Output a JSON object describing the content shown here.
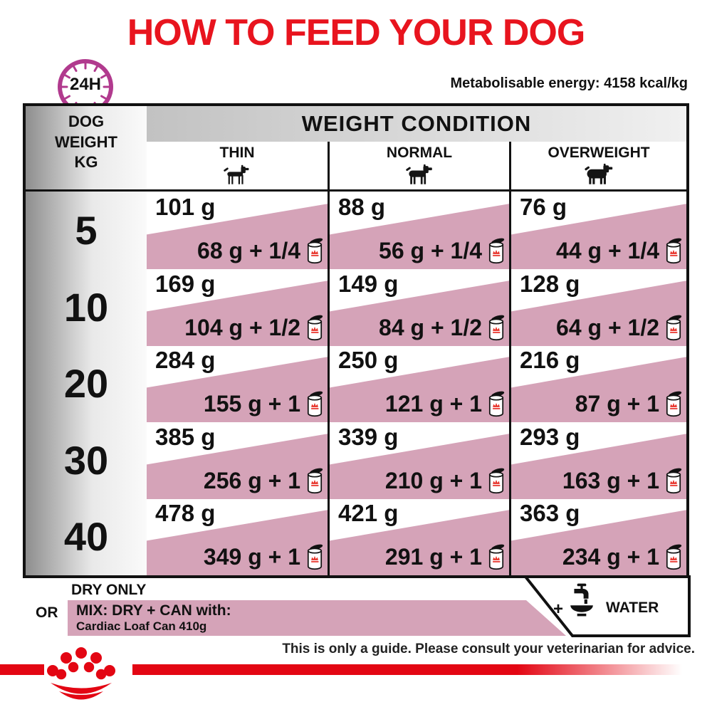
{
  "title": "HOW TO FEED YOUR DOG",
  "clock": {
    "label": "24H"
  },
  "energy_note": "Metabolisable energy: 4158 kcal/kg",
  "table": {
    "weight_header": "DOG WEIGHT KG",
    "condition_header": "WEIGHT CONDITION",
    "columns": [
      {
        "label": "THIN",
        "icon": "dog-thin-icon"
      },
      {
        "label": "NORMAL",
        "icon": "dog-normal-icon"
      },
      {
        "label": "OVERWEIGHT",
        "icon": "dog-overweight-icon"
      }
    ],
    "rows": [
      {
        "weight_kg": "5",
        "cells": [
          {
            "dry": "101 g",
            "mix": "68 g + 1/4"
          },
          {
            "dry": "88 g",
            "mix": "56 g + 1/4"
          },
          {
            "dry": "76 g",
            "mix": "44 g + 1/4"
          }
        ]
      },
      {
        "weight_kg": "10",
        "cells": [
          {
            "dry": "169 g",
            "mix": "104 g + 1/2"
          },
          {
            "dry": "149 g",
            "mix": "84 g + 1/2"
          },
          {
            "dry": "128 g",
            "mix": "64 g + 1/2"
          }
        ]
      },
      {
        "weight_kg": "20",
        "cells": [
          {
            "dry": "284 g",
            "mix": "155 g + 1"
          },
          {
            "dry": "250 g",
            "mix": "121 g + 1"
          },
          {
            "dry": "216 g",
            "mix": "87 g + 1"
          }
        ]
      },
      {
        "weight_kg": "30",
        "cells": [
          {
            "dry": "385 g",
            "mix": "256 g + 1"
          },
          {
            "dry": "339 g",
            "mix": "210 g + 1"
          },
          {
            "dry": "293 g",
            "mix": "163 g + 1"
          }
        ]
      },
      {
        "weight_kg": "40",
        "cells": [
          {
            "dry": "478 g",
            "mix": "349 g + 1"
          },
          {
            "dry": "421 g",
            "mix": "291 g + 1"
          },
          {
            "dry": "363 g",
            "mix": "234 g + 1"
          }
        ]
      }
    ]
  },
  "legend": {
    "dry_only": "DRY ONLY",
    "or": "OR",
    "mix_line1": "MIX: DRY + CAN with:",
    "mix_line2": "Cardiac Loaf Can 410g",
    "plus": "+",
    "water": "WATER"
  },
  "footer": {
    "disclaimer": "This is only a guide. Please consult your veterinarian for advice."
  },
  "colors": {
    "title_red": "#e8141e",
    "stripe_red": "#e30613",
    "mix_pink": "#d5a3b8",
    "clock_purple": "#b13a8e"
  }
}
